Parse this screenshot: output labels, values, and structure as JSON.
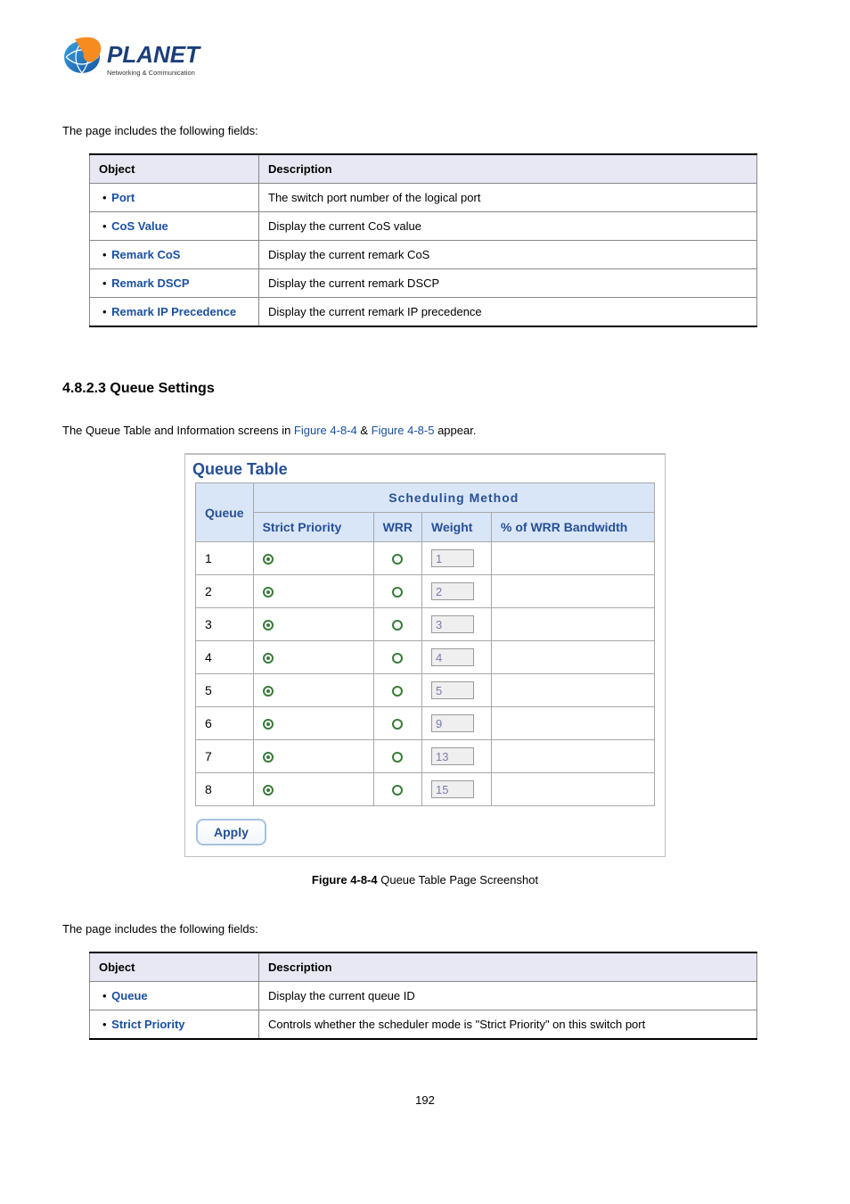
{
  "intro1": "The page includes the following fields:",
  "table1": {
    "headers": [
      "Object",
      "Description"
    ],
    "rows": [
      {
        "label": "Port",
        "desc": "The switch port number of the logical port"
      },
      {
        "label": "CoS Value",
        "desc": "Display the current CoS value"
      },
      {
        "label": "Remark CoS",
        "desc": "Display the current remark CoS"
      },
      {
        "label": "Remark DSCP",
        "desc": "Display the current remark DSCP"
      },
      {
        "label": "Remark IP Precedence",
        "desc": "Display the current remark IP precedence"
      }
    ]
  },
  "section": "4.8.2.3 Queue Settings",
  "qline": {
    "t1": "The Queue Table and Information screens in ",
    "l1": "Figure 4-8-4",
    "amp": " & ",
    "l2": "Figure 4-8-5",
    "t2": " appear."
  },
  "queueTable": {
    "title": "Queue Table",
    "headers": {
      "queue": "Queue",
      "sched": "Scheduling Method",
      "sp": "Strict Priority",
      "wrr": "WRR",
      "weight": "Weight",
      "bw": "% of WRR Bandwidth"
    },
    "rows": [
      {
        "q": "1",
        "sp": true,
        "w": "1",
        "bw": ""
      },
      {
        "q": "2",
        "sp": true,
        "w": "2",
        "bw": ""
      },
      {
        "q": "3",
        "sp": true,
        "w": "3",
        "bw": ""
      },
      {
        "q": "4",
        "sp": true,
        "w": "4",
        "bw": ""
      },
      {
        "q": "5",
        "sp": true,
        "w": "5",
        "bw": ""
      },
      {
        "q": "6",
        "sp": true,
        "w": "9",
        "bw": ""
      },
      {
        "q": "7",
        "sp": true,
        "w": "13",
        "bw": ""
      },
      {
        "q": "8",
        "sp": true,
        "w": "15",
        "bw": ""
      }
    ],
    "apply": "Apply",
    "style": {
      "title_color": "#274f94",
      "header_bg": "#d9e6f7",
      "header_color": "#274f94",
      "border_color": "#a8a8a8",
      "radio_color": "#3a7a3a",
      "weight_bg": "#efefef",
      "weight_text_color": "#7a7ab0",
      "apply_border": "#a8c1df",
      "apply_color": "#274f94"
    }
  },
  "caption": {
    "bold": "Figure 4-8-4",
    "text": " Queue Table Page Screenshot"
  },
  "intro2": "The page includes the following fields:",
  "table2": {
    "headers": [
      "Object",
      "Description"
    ],
    "rows": [
      {
        "label": "Queue",
        "desc": "Display the current queue ID"
      },
      {
        "label": "Strict Priority",
        "desc": "Controls whether the scheduler mode is \"Strict Priority\" on this switch port"
      }
    ]
  },
  "pagenum": "192",
  "doc_style": {
    "obj_header_bg": "#e8e8f4",
    "obj_label_color": "#1a4fa0",
    "link_color": "#1a4fa0"
  }
}
